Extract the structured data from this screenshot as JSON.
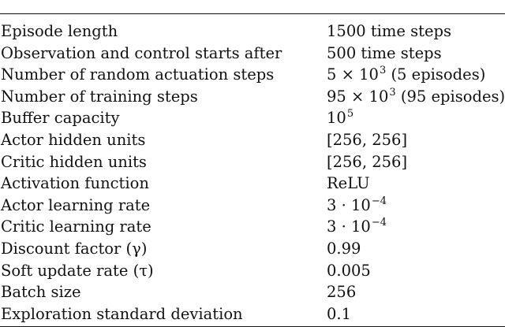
{
  "table": {
    "rows": [
      {
        "param": "Episode length",
        "value": {
          "base": "1500 time steps"
        }
      },
      {
        "param": "Observation and control starts after",
        "value": {
          "base": "500 time steps"
        }
      },
      {
        "param": "Number of random actuation steps",
        "value": {
          "base": "5 × 10",
          "sup": "3",
          "after": " (5 episodes)"
        }
      },
      {
        "param": "Number of training steps",
        "value": {
          "base": "95 × 10",
          "sup": "3",
          "after": " (95 episodes)"
        }
      },
      {
        "param": "Buffer capacity",
        "value": {
          "base": "10",
          "sup": "5"
        }
      },
      {
        "param": "Actor hidden units",
        "value": {
          "base": "[256, 256]"
        }
      },
      {
        "param": "Critic hidden units",
        "value": {
          "base": "[256, 256]"
        }
      },
      {
        "param": "Activation function",
        "value": {
          "base": "ReLU"
        }
      },
      {
        "param": "Actor learning rate",
        "value": {
          "base": "3 · 10",
          "sup": "−4"
        }
      },
      {
        "param": "Critic learning rate",
        "value": {
          "base": "3 · 10",
          "sup": "−4"
        }
      },
      {
        "param": "Discount factor (γ)",
        "value": {
          "base": "0.99"
        }
      },
      {
        "param": "Soft update rate (τ)",
        "value": {
          "base": "0.005"
        }
      },
      {
        "param": "Batch size",
        "value": {
          "base": "256"
        }
      },
      {
        "param": "Exploration standard deviation",
        "value": {
          "base": "0.1"
        }
      }
    ]
  }
}
